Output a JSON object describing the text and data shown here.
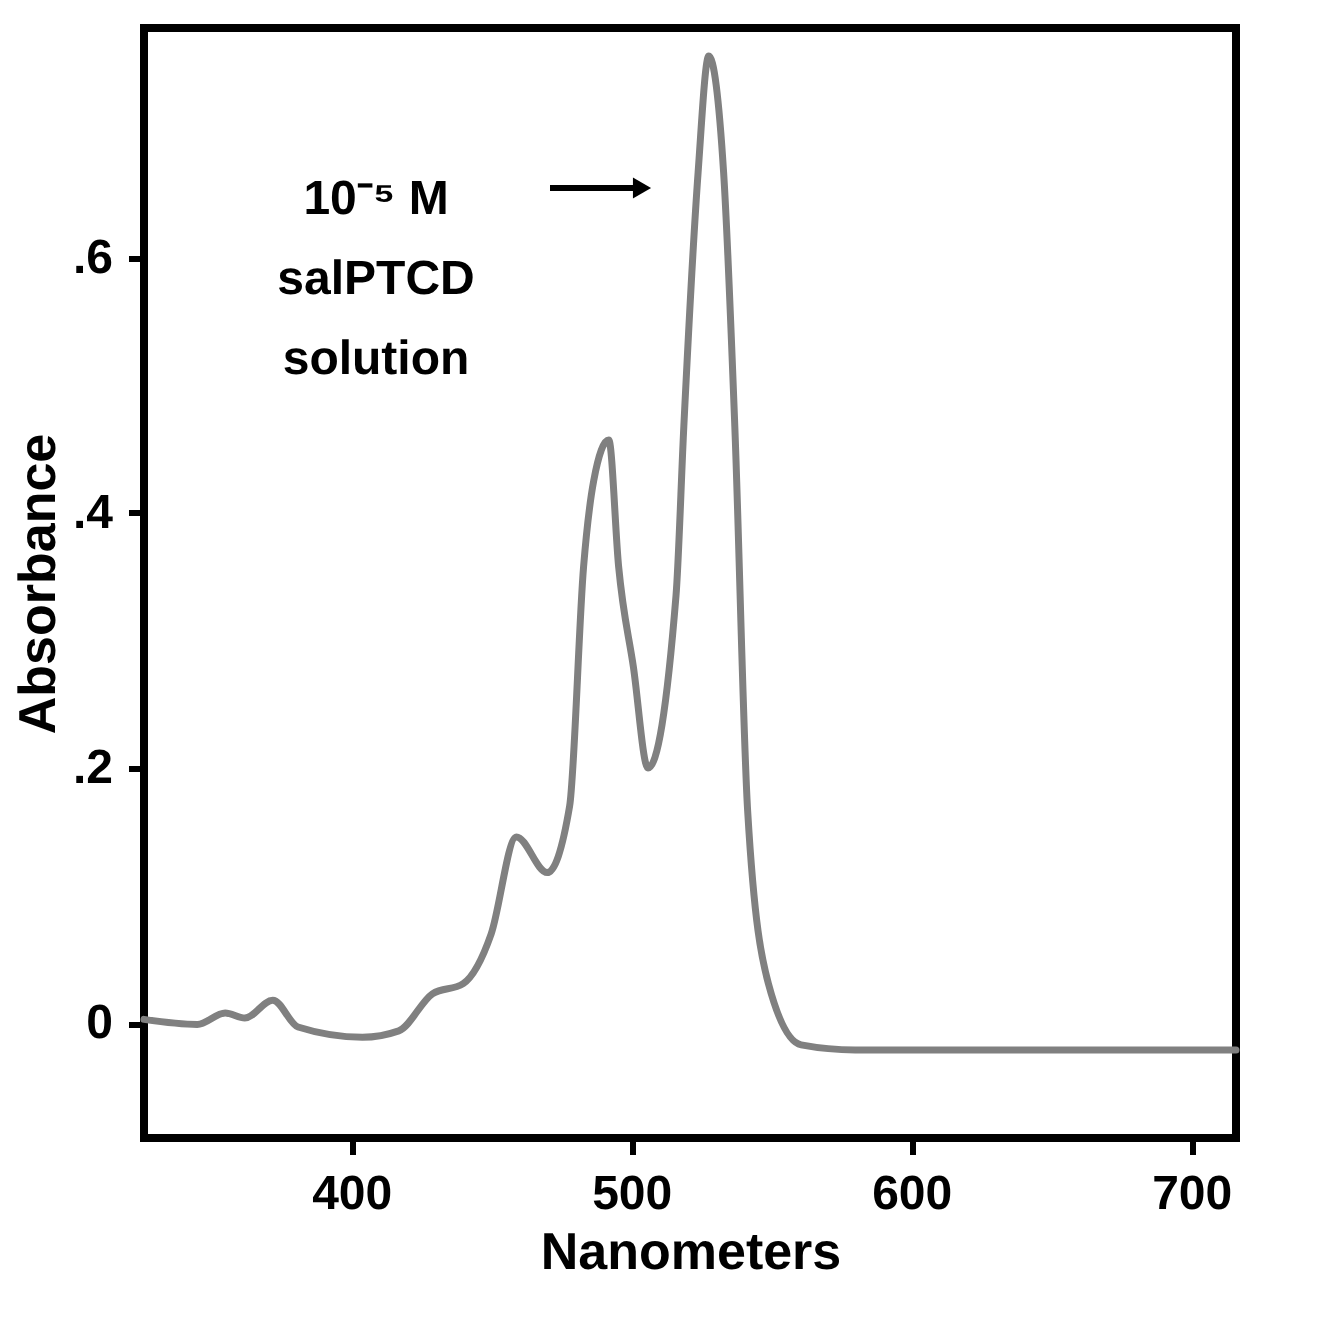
{
  "chart_data": {
    "type": "line",
    "xlabel": "Nanometers",
    "ylabel": "Absorbance",
    "x": [
      326,
      345,
      355,
      362,
      372,
      381,
      404,
      417,
      429,
      440,
      450,
      459,
      470,
      478,
      483,
      486.6,
      492,
      495.5,
      500.8,
      506,
      516,
      518.8,
      523.9,
      527.7,
      533,
      537,
      541.6,
      549,
      560.7,
      580,
      650,
      716
    ],
    "series": [
      {
        "color": "#808080",
        "values": [
          0.003,
          -0.001,
          0.008,
          0.004,
          0.018,
          -0.003,
          -0.011,
          -0.006,
          0.023,
          0.031,
          0.07,
          0.146,
          0.118,
          0.17,
          0.358,
          0.425,
          0.457,
          0.358,
          0.279,
          0.2,
          0.335,
          0.468,
          0.667,
          0.758,
          0.667,
          0.468,
          0.166,
          0.031,
          -0.017,
          -0.021,
          -0.021,
          -0.021
        ]
      }
    ],
    "xlim": [
      326,
      716
    ],
    "xticks": [
      400,
      500,
      600,
      700
    ],
    "ylim": [
      -0.09,
      0.78
    ],
    "yticks": [
      {
        "value": 0,
        "label": "0"
      },
      {
        "value": 0.2,
        "label": ".2"
      },
      {
        "value": 0.4,
        "label": ".4"
      },
      {
        "value": 0.6,
        "label": ".6"
      }
    ],
    "grid": false,
    "marker": "none",
    "line_style": "solid",
    "annotations": [
      "10⁻⁵ M\nsalPTCD\nsolution"
    ]
  }
}
